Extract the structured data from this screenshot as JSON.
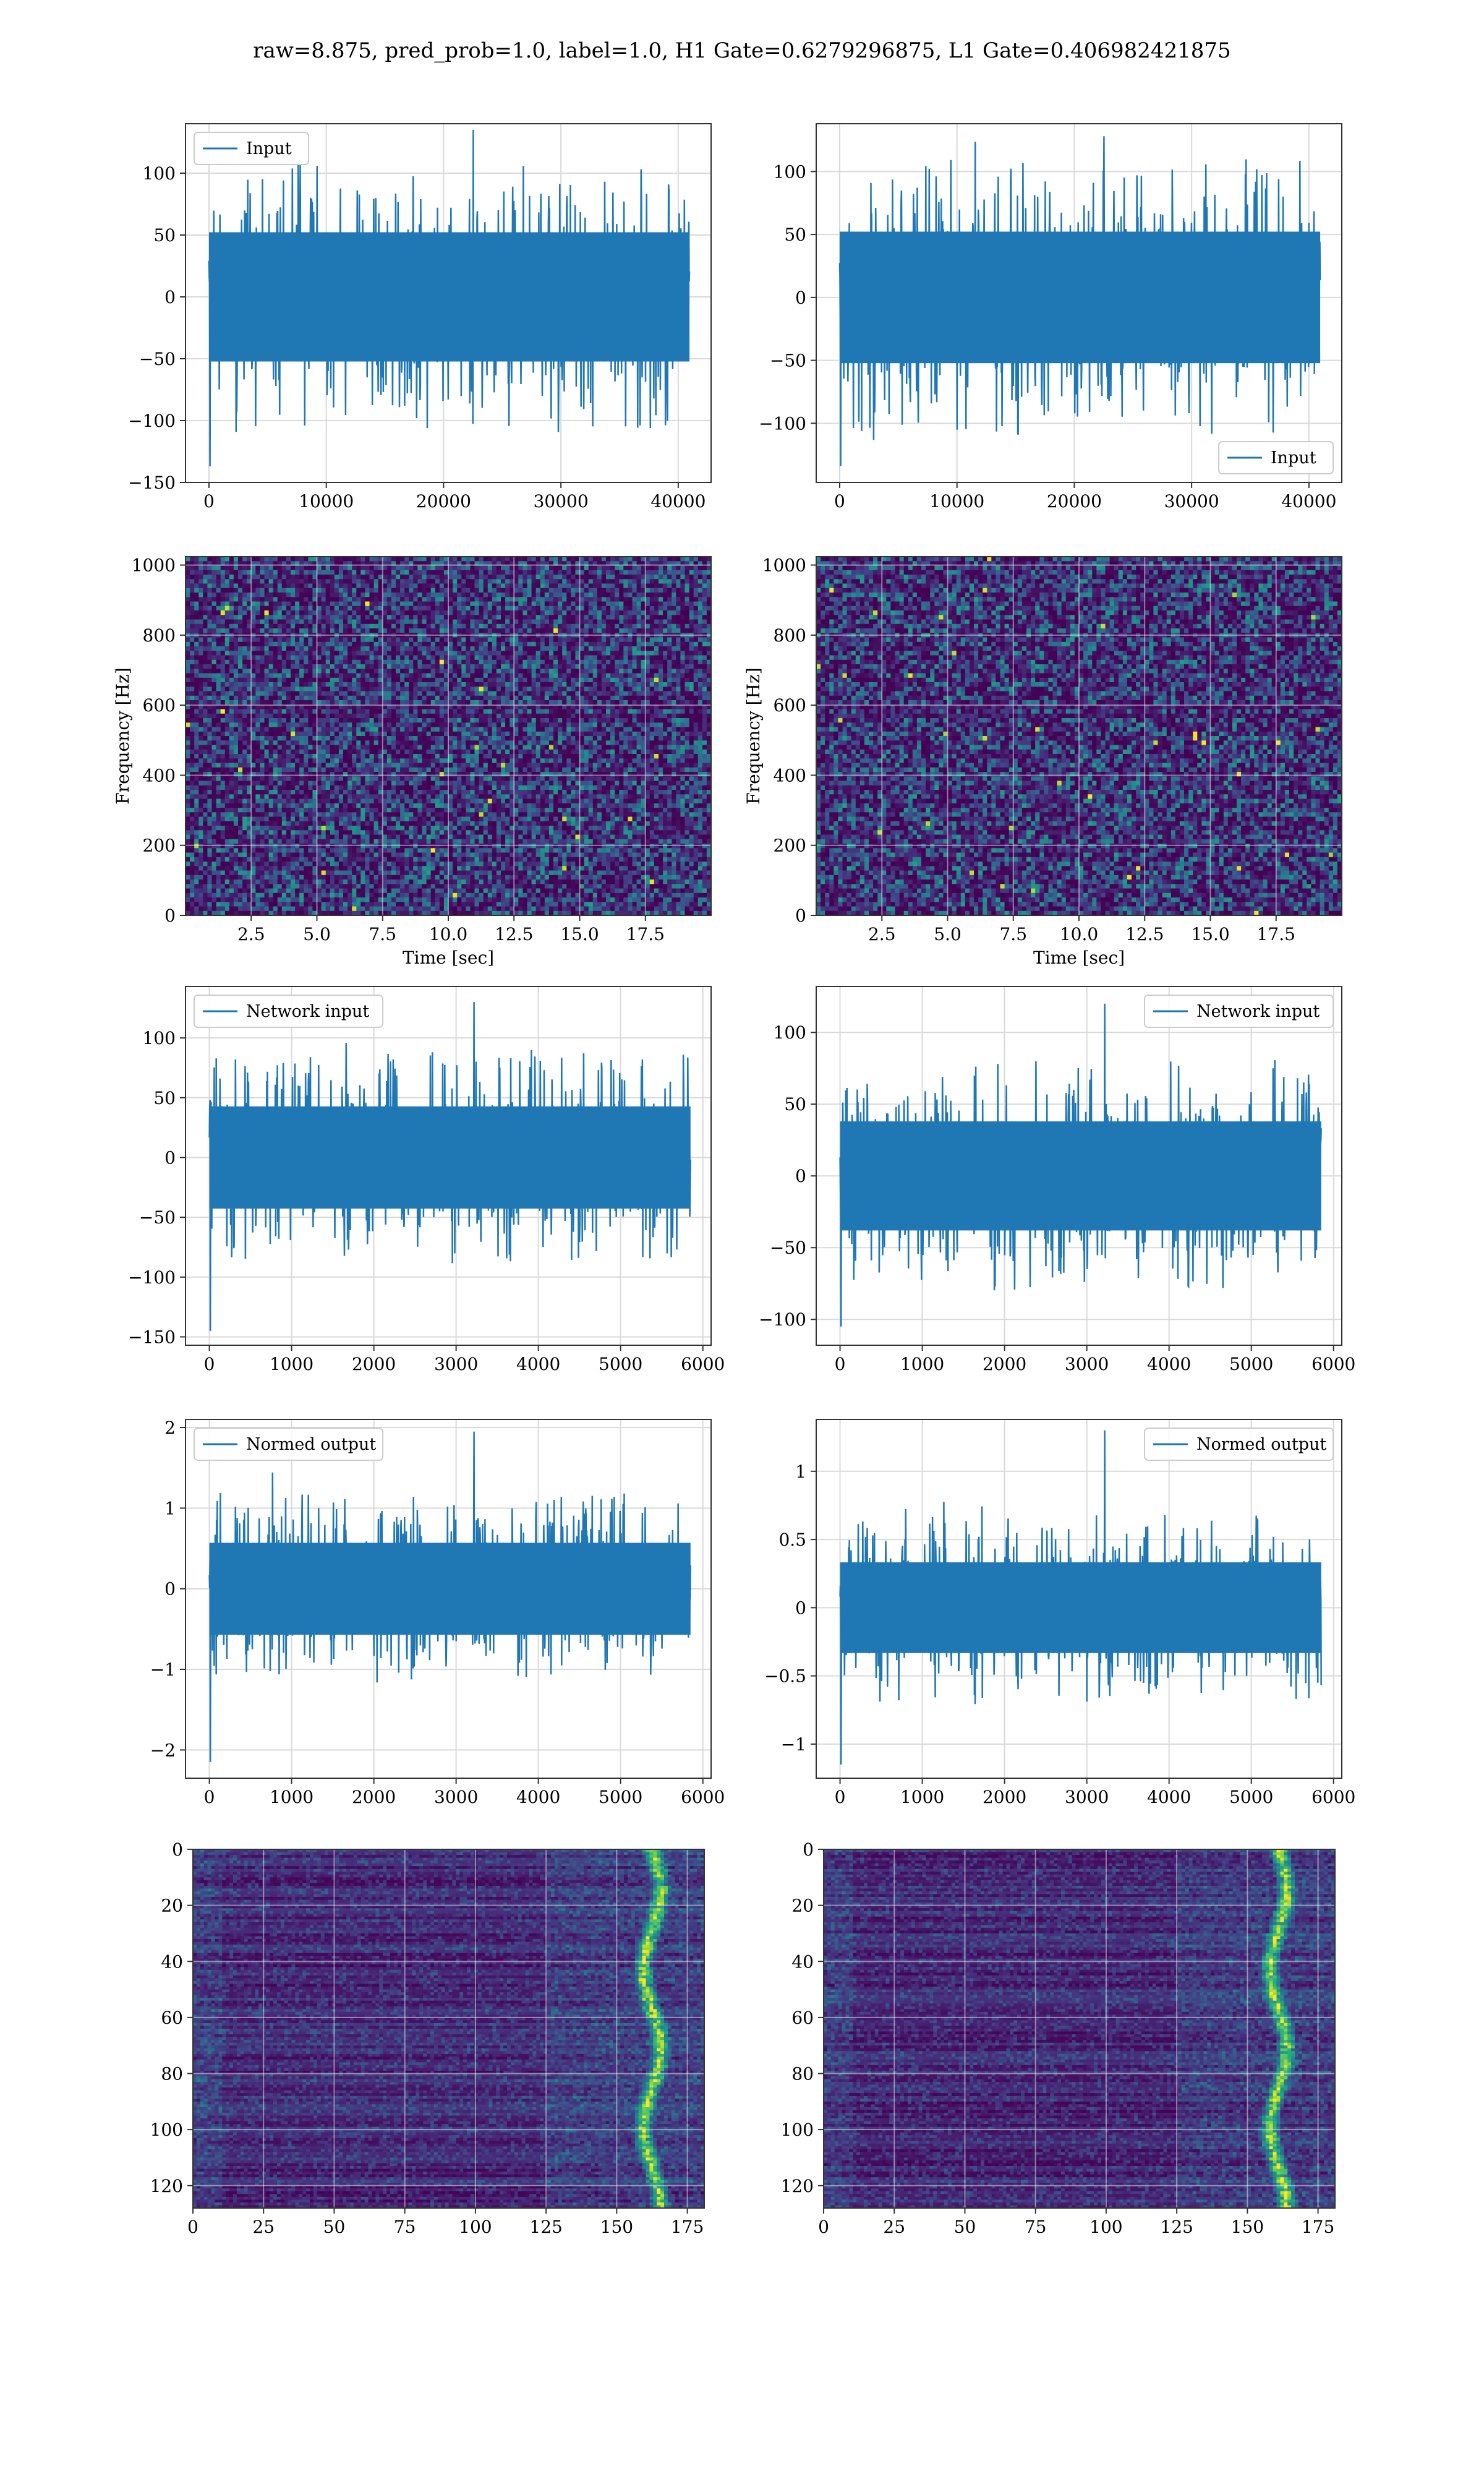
{
  "suptitle": "raw=8.875, pred_prob=1.0, label=1.0, H1 Gate=0.6279296875, L1 Gate=0.406982421875",
  "colors": {
    "line": "#1f77b4",
    "grid": "#d9d9d9",
    "axes": "#333333",
    "viridis": [
      "#440154",
      "#472d7b",
      "#3b528b",
      "#2c728e",
      "#21918c",
      "#28ae80",
      "#5ec962",
      "#addc30",
      "#fde725"
    ]
  },
  "chart_data": [
    {
      "type": "line",
      "panel": "row1-left",
      "legend": {
        "label": "Input",
        "loc": "upper-left"
      },
      "xlim": [
        -2000,
        42800
      ],
      "ylim": [
        -150,
        140
      ],
      "xticks": [
        0,
        10000,
        20000,
        30000,
        40000
      ],
      "yticks": [
        -150,
        -100,
        -50,
        0,
        50,
        100
      ],
      "series": [
        {
          "x_range": [
            0,
            40960
          ],
          "envelope": {
            "dense_amp": 55,
            "spike_max": 135,
            "spike_min": -137
          }
        }
      ]
    },
    {
      "type": "line",
      "panel": "row1-right",
      "legend": {
        "label": "Input",
        "loc": "lower-right"
      },
      "xlim": [
        -2000,
        42800
      ],
      "ylim": [
        -147,
        138
      ],
      "xticks": [
        0,
        10000,
        20000,
        30000,
        40000
      ],
      "yticks": [
        -100,
        -50,
        0,
        50,
        100
      ],
      "series": [
        {
          "x_range": [
            0,
            40960
          ],
          "envelope": {
            "dense_amp": 55,
            "spike_max": 128,
            "spike_min": -134
          }
        }
      ]
    },
    {
      "type": "heatmap",
      "panel": "row2-left",
      "xlabel": "Time [sec]",
      "ylabel": "Frequency [Hz]",
      "xlim": [
        0,
        20
      ],
      "ylim": [
        0,
        1024
      ],
      "xticks": [
        2.5,
        5.0,
        7.5,
        10.0,
        12.5,
        15.0,
        17.5
      ],
      "yticks": [
        0,
        200,
        400,
        600,
        800,
        1000
      ]
    },
    {
      "type": "heatmap",
      "panel": "row2-right",
      "xlabel": "Time [sec]",
      "ylabel": "Frequency [Hz]",
      "xlim": [
        0,
        20
      ],
      "ylim": [
        0,
        1024
      ],
      "xticks": [
        2.5,
        5.0,
        7.5,
        10.0,
        12.5,
        15.0,
        17.5
      ],
      "yticks": [
        0,
        200,
        400,
        600,
        800,
        1000
      ]
    },
    {
      "type": "line",
      "panel": "row3-left",
      "legend": {
        "label": "Network input",
        "loc": "upper-left"
      },
      "xlim": [
        -290,
        6100
      ],
      "ylim": [
        -157,
        143
      ],
      "xticks": [
        0,
        1000,
        2000,
        3000,
        4000,
        5000,
        6000
      ],
      "yticks": [
        -150,
        -100,
        -50,
        0,
        50,
        100
      ],
      "series": [
        {
          "x_range": [
            0,
            5850
          ],
          "envelope": {
            "dense_amp": 45,
            "spike_max": 130,
            "spike_min": -145
          }
        }
      ]
    },
    {
      "type": "line",
      "panel": "row3-right",
      "legend": {
        "label": "Network input",
        "loc": "upper-right"
      },
      "xlim": [
        -290,
        6100
      ],
      "ylim": [
        -118,
        132
      ],
      "xticks": [
        0,
        1000,
        2000,
        3000,
        4000,
        5000,
        6000
      ],
      "yticks": [
        -100,
        -50,
        0,
        50,
        100
      ],
      "series": [
        {
          "x_range": [
            0,
            5850
          ],
          "envelope": {
            "dense_amp": 40,
            "spike_max": 120,
            "spike_min": -105
          }
        }
      ]
    },
    {
      "type": "line",
      "panel": "row4-left",
      "legend": {
        "label": "Normed output",
        "loc": "upper-left"
      },
      "xlim": [
        -290,
        6100
      ],
      "ylim": [
        -2.35,
        2.1
      ],
      "xticks": [
        0,
        1000,
        2000,
        3000,
        4000,
        5000,
        6000
      ],
      "yticks": [
        -2,
        -1,
        0,
        1,
        2
      ],
      "series": [
        {
          "x_range": [
            0,
            5850
          ],
          "envelope": {
            "dense_amp": 0.6,
            "spike_max": 1.95,
            "spike_min": -2.15
          }
        }
      ]
    },
    {
      "type": "line",
      "panel": "row4-right",
      "legend": {
        "label": "Normed output",
        "loc": "upper-right"
      },
      "xlim": [
        -290,
        6100
      ],
      "ylim": [
        -1.25,
        1.38
      ],
      "xticks": [
        0,
        1000,
        2000,
        3000,
        4000,
        5000,
        6000
      ],
      "yticks": [
        -1.0,
        -0.5,
        0.0,
        0.5,
        1.0
      ],
      "series": [
        {
          "x_range": [
            0,
            5850
          ],
          "envelope": {
            "dense_amp": 0.35,
            "spike_max": 1.3,
            "spike_min": -1.15
          }
        }
      ]
    },
    {
      "type": "heatmap",
      "panel": "row5-left",
      "xlim": [
        0,
        181
      ],
      "ylim": [
        128,
        0
      ],
      "xticks": [
        0,
        25,
        50,
        75,
        100,
        125,
        150,
        175
      ],
      "yticks": [
        0,
        20,
        40,
        60,
        80,
        100,
        120
      ],
      "bright_band_x": [
        155,
        170
      ]
    },
    {
      "type": "heatmap",
      "panel": "row5-right",
      "xlim": [
        0,
        181
      ],
      "ylim": [
        128,
        0
      ],
      "xticks": [
        0,
        25,
        50,
        75,
        100,
        125,
        150,
        175
      ],
      "yticks": [
        0,
        20,
        40,
        60,
        80,
        100,
        120
      ],
      "bright_band_x": [
        150,
        172
      ]
    }
  ]
}
